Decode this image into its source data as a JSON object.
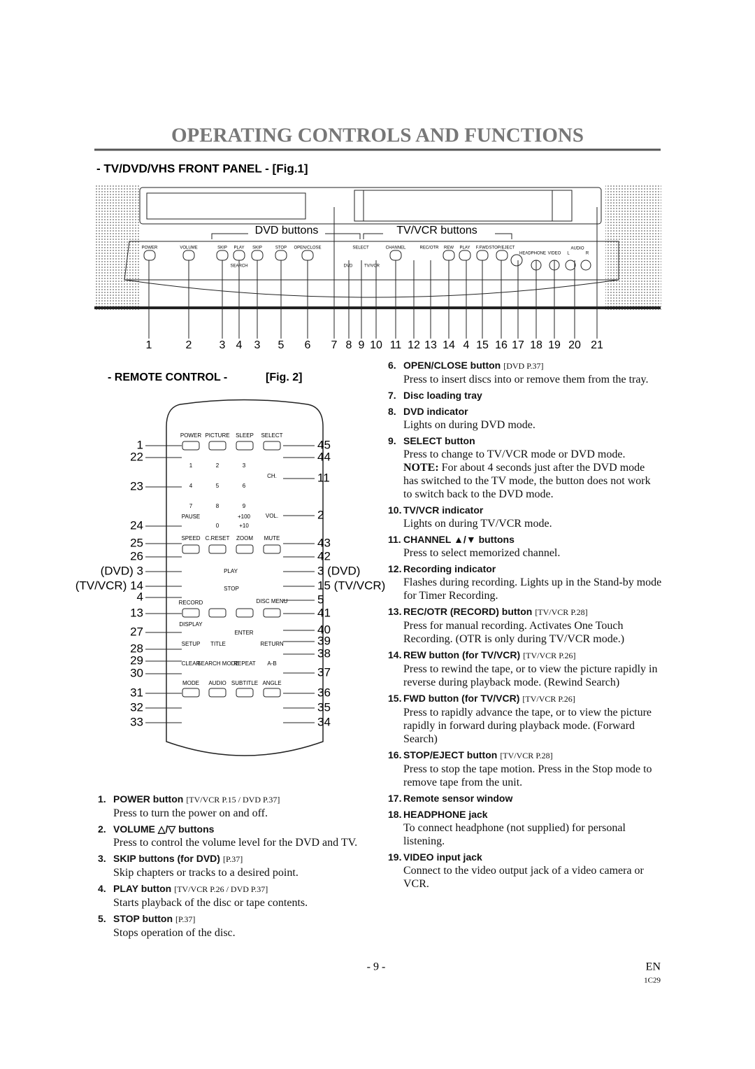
{
  "header": {
    "title": "OPERATING CONTROLS AND FUNCTIONS"
  },
  "front_panel": {
    "heading": "- TV/DVD/VHS FRONT PANEL - [Fig.1]",
    "group_labels": [
      "DVD buttons",
      "TV/VCR buttons"
    ],
    "button_labels": [
      "POWER",
      "VOLUME",
      "SKIP",
      "PLAY",
      "SKIP",
      "STOP",
      "OPEN/CLOSE",
      "SELECT",
      "CHANNEL",
      "REC/OTR",
      "REW",
      "PLAY",
      "F.FWD",
      "STOP/EJECT",
      "HEADPHONE",
      "VIDEO",
      "AUDIO",
      "L",
      "R",
      "SEARCH",
      "DVD",
      "TV/VCR"
    ],
    "callouts": [
      "1",
      "2",
      "3",
      "4",
      "3",
      "5",
      "6",
      "7",
      "8",
      "9",
      "10",
      "11",
      "12",
      "13",
      "14",
      "4",
      "15",
      "16",
      "17",
      "18",
      "19",
      "20",
      "21"
    ]
  },
  "remote": {
    "heading": "- REMOTE CONTROL -",
    "fig": "[Fig. 2]",
    "buttons": [
      "POWER",
      "PICTURE",
      "SLEEP",
      "SELECT",
      "1",
      "2",
      "3",
      "4",
      "5",
      "6",
      "7",
      "8",
      "9",
      "PAUSE",
      "0",
      "+100",
      "+10",
      "CH.",
      "VOL.",
      "SPEED",
      "C.RESET",
      "ZOOM",
      "MUTE",
      "PLAY",
      "STOP",
      "RECORD",
      "DISC MENU",
      "DISPLAY",
      "ENTER",
      "SETUP",
      "TITLE",
      "RETURN",
      "CLEAR",
      "SEARCH MODE",
      "REPEAT",
      "A-B",
      "MODE",
      "AUDIO",
      "SUBTITLE",
      "ANGLE"
    ],
    "callouts_left": [
      "1",
      "22",
      "23",
      "24",
      "25",
      "26",
      "(DVD) 3",
      "(TV/VCR) 14",
      "4",
      "13",
      "27",
      "28",
      "29",
      "30",
      "31",
      "32",
      "33"
    ],
    "callouts_right": [
      "45",
      "44",
      "11",
      "2",
      "43",
      "42",
      "3 (DVD)",
      "15 (TV/VCR)",
      "5",
      "41",
      "40",
      "39",
      "38",
      "37",
      "36",
      "35",
      "34"
    ]
  },
  "items": [
    {
      "number": "1.",
      "title": "POWER button",
      "ref": "[TV/VCR P.15 / DVD P.37]",
      "text": "Press to turn the power on and off."
    },
    {
      "number": "2.",
      "title": "VOLUME △/▽ buttons",
      "text": "Press to control the volume level for the DVD and TV."
    },
    {
      "number": "3.",
      "title": "SKIP buttons (for DVD)",
      "ref": "[P.37]",
      "text": "Skip chapters or tracks to a desired point."
    },
    {
      "number": "4.",
      "title": "PLAY button",
      "ref": "[TV/VCR P.26 / DVD P.37]",
      "text": "Starts playback of the disc or tape contents."
    },
    {
      "number": "5.",
      "title": "STOP button",
      "ref": "[P.37]",
      "text": "Stops operation of the disc."
    },
    {
      "number": "6.",
      "title": "OPEN/CLOSE button",
      "ref": "[DVD P.37]",
      "text": "Press to insert discs into or remove them from the tray."
    },
    {
      "number": "7.",
      "title": "Disc loading tray"
    },
    {
      "number": "8.",
      "title": "DVD indicator",
      "text": "Lights on during DVD mode."
    },
    {
      "number": "9.",
      "title": "SELECT button",
      "text": "Press to change to TV/VCR mode or DVD mode.",
      "note_label": "NOTE:",
      "note": "For about 4 seconds just after the DVD mode has switched to the TV mode, the button does not work to switch back to the DVD mode."
    },
    {
      "number": "10.",
      "title": "TV/VCR indicator",
      "text": "Lights on during TV/VCR mode."
    },
    {
      "number": "11.",
      "title": "CHANNEL ▲/▼ buttons",
      "text": "Press to select memorized channel."
    },
    {
      "number": "12.",
      "title": "Recording indicator",
      "text": "Flashes during recording. Lights up in the Stand-by mode for Timer Recording."
    },
    {
      "number": "13.",
      "title": "REC/OTR (RECORD) button",
      "ref": "[TV/VCR P.28]",
      "text": "Press for manual recording. Activates One Touch Recording. (OTR is only during TV/VCR mode.)"
    },
    {
      "number": "14.",
      "title": "REW button (for TV/VCR)",
      "ref": "[TV/VCR P.26]",
      "text": "Press to rewind the tape, or to view the picture rapidly in reverse during playback mode. (Rewind Search)"
    },
    {
      "number": "15.",
      "title": "FWD button (for TV/VCR)",
      "ref": "[TV/VCR P.26]",
      "text": "Press to rapidly advance the tape, or to view the picture rapidly in forward during playback mode. (Forward Search)"
    },
    {
      "number": "16.",
      "title": "STOP/EJECT button",
      "ref": "[TV/VCR P.28]",
      "text": "Press to stop the tape motion. Press in the Stop mode to remove tape from the unit."
    },
    {
      "number": "17.",
      "title": "Remote sensor window"
    },
    {
      "number": "18.",
      "title": "HEADPHONE jack",
      "text": "To connect headphone (not supplied) for personal listening."
    },
    {
      "number": "19.",
      "title": "VIDEO input jack",
      "text": "Connect to the video output jack of a video camera or VCR."
    }
  ],
  "footer": {
    "page": "- 9 -",
    "lang": "EN",
    "code": "1C29"
  }
}
